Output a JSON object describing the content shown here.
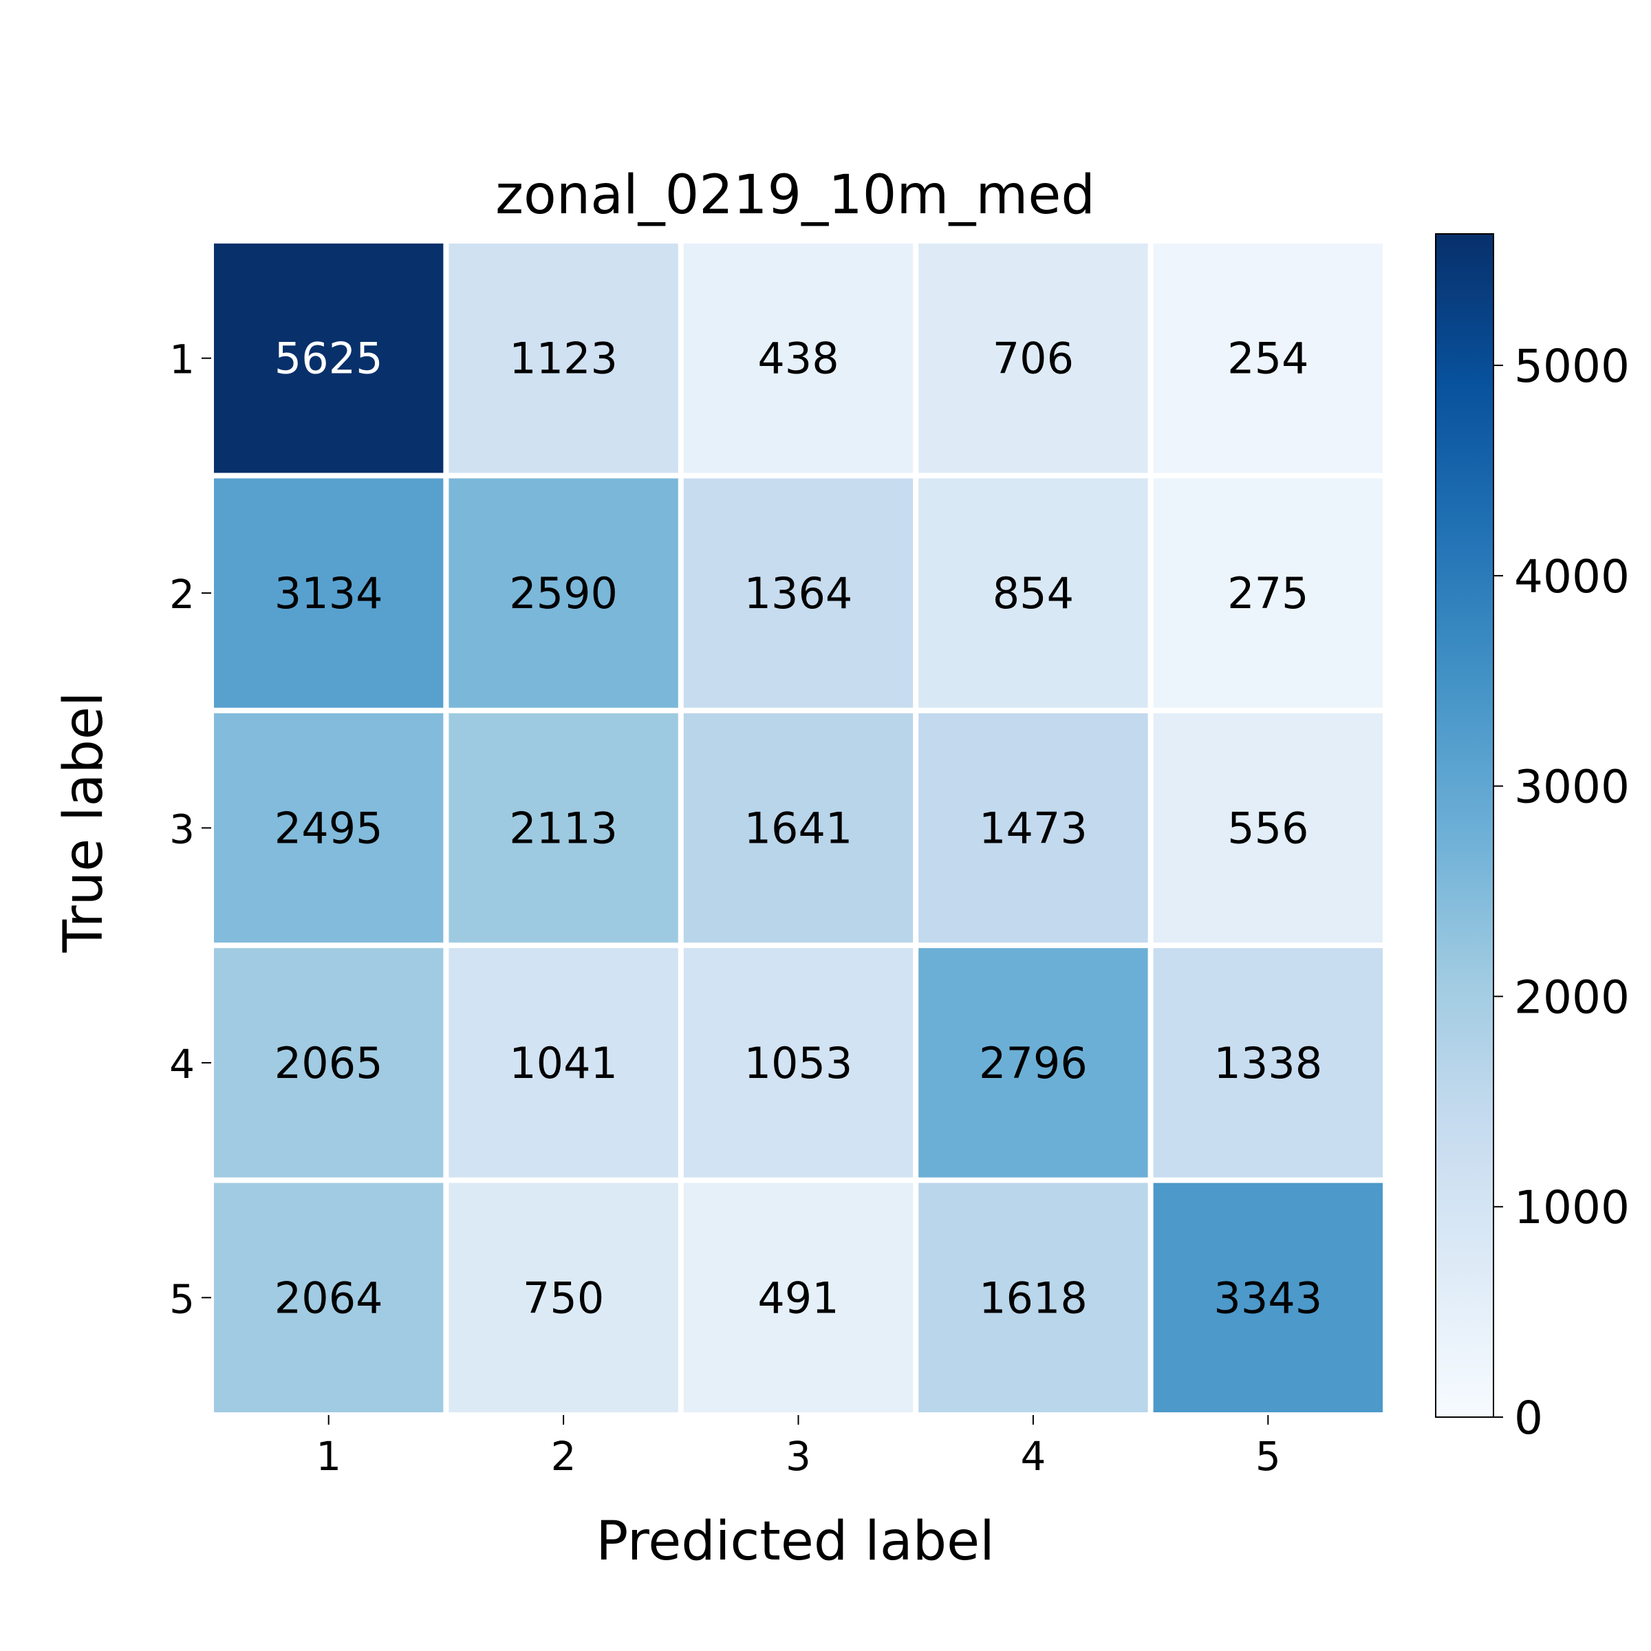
{
  "chart_data": {
    "type": "heatmap",
    "title": "zonal_0219_10m_med",
    "xlabel": "Predicted label",
    "ylabel": "True label",
    "x_categories": [
      "1",
      "2",
      "3",
      "4",
      "5"
    ],
    "y_categories": [
      "1",
      "2",
      "3",
      "4",
      "5"
    ],
    "values": [
      [
        5625,
        1123,
        438,
        706,
        254
      ],
      [
        3134,
        2590,
        1364,
        854,
        275
      ],
      [
        2495,
        2113,
        1641,
        1473,
        556
      ],
      [
        2065,
        1041,
        1053,
        2796,
        1338
      ],
      [
        2064,
        750,
        491,
        1618,
        3343
      ]
    ],
    "colorbar": {
      "min": 0,
      "max": 5625,
      "ticks": [
        0,
        1000,
        2000,
        3000,
        4000,
        5000
      ],
      "colormap": "Blues"
    },
    "grid": false,
    "legend": "none"
  }
}
